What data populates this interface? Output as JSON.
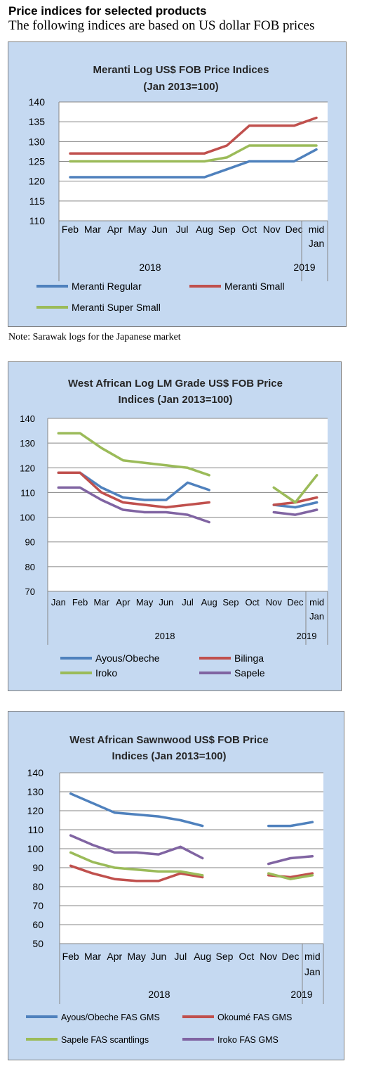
{
  "page": {
    "heading": "Price indices for selected products",
    "subheading": "The following indices are based on US dollar FOB prices",
    "note": "Note: Sarawak logs for the Japanese market"
  },
  "chart_data": [
    {
      "type": "line",
      "title": "Meranti Log US$ FOB Price Indices",
      "subtitle": "(Jan 2013=100)",
      "categories": [
        "Feb",
        "Mar",
        "Apr",
        "May",
        "Jun",
        "Jul",
        "Aug",
        "Sep",
        "Oct",
        "Nov",
        "Dec",
        "mid Jan"
      ],
      "group_labels": [
        "2018",
        "2019"
      ],
      "ylim": [
        110,
        140
      ],
      "yticks": [
        110,
        115,
        120,
        125,
        130,
        135,
        140
      ],
      "grid": true,
      "legend_position": "bottom",
      "series": [
        {
          "name": "Meranti Regular",
          "color": "#4f81bd",
          "values": [
            121,
            121,
            121,
            121,
            121,
            121,
            121,
            123,
            125,
            125,
            125,
            128
          ]
        },
        {
          "name": "Meranti Small",
          "color": "#c0504d",
          "values": [
            127,
            127,
            127,
            127,
            127,
            127,
            127,
            129,
            134,
            134,
            134,
            136
          ]
        },
        {
          "name": "Meranti Super Small",
          "color": "#9bbb59",
          "values": [
            125,
            125,
            125,
            125,
            125,
            125,
            125,
            126,
            129,
            129,
            129,
            129
          ]
        }
      ]
    },
    {
      "type": "line",
      "title": "West African Log LM Grade US$ FOB Price",
      "subtitle": "Indices (Jan 2013=100)",
      "categories": [
        "Jan",
        "Feb",
        "Mar",
        "Apr",
        "May",
        "Jun",
        "Jul",
        "Aug",
        "Sep",
        "Oct",
        "Nov",
        "Dec",
        "mid Jan"
      ],
      "group_labels": [
        "2018",
        "2019"
      ],
      "ylim": [
        70,
        140
      ],
      "yticks": [
        70,
        80,
        90,
        100,
        110,
        120,
        130,
        140
      ],
      "grid": true,
      "legend_position": "bottom",
      "series": [
        {
          "name": "Ayous/Obeche",
          "color": "#4f81bd",
          "values": [
            118,
            118,
            112,
            108,
            107,
            107,
            114,
            111,
            null,
            null,
            105,
            104,
            106
          ]
        },
        {
          "name": "Bilinga",
          "color": "#c0504d",
          "values": [
            118,
            118,
            110,
            106,
            105,
            104,
            105,
            106,
            null,
            null,
            105,
            106,
            108
          ]
        },
        {
          "name": "Iroko",
          "color": "#9bbb59",
          "values": [
            134,
            134,
            128,
            123,
            122,
            121,
            120,
            117,
            null,
            null,
            112,
            106,
            117
          ]
        },
        {
          "name": "Sapele",
          "color": "#8064a2",
          "values": [
            112,
            112,
            107,
            103,
            102,
            102,
            101,
            98,
            null,
            null,
            102,
            101,
            103
          ]
        }
      ]
    },
    {
      "type": "line",
      "title": "West African Sawnwood US$ FOB Price",
      "subtitle": "Indices (Jan 2013=100)",
      "categories": [
        "Feb",
        "Mar",
        "Apr",
        "May",
        "Jun",
        "Jul",
        "Aug",
        "Sep",
        "Oct",
        "Nov",
        "Dec",
        "mid Jan"
      ],
      "group_labels": [
        "2018",
        "2019"
      ],
      "ylim": [
        50,
        140
      ],
      "yticks": [
        50,
        60,
        70,
        80,
        90,
        100,
        110,
        120,
        130,
        140
      ],
      "grid": true,
      "legend_position": "bottom",
      "series": [
        {
          "name": "Ayous/Obeche  FAS GMS",
          "color": "#4f81bd",
          "values": [
            129,
            124,
            119,
            118,
            117,
            115,
            112,
            null,
            null,
            112,
            112,
            114
          ]
        },
        {
          "name": "Okoumé  FAS GMS",
          "color": "#c0504d",
          "values": [
            91,
            87,
            84,
            83,
            83,
            87,
            85,
            null,
            null,
            86,
            85,
            87
          ]
        },
        {
          "name": "Sapele FAS scantlings",
          "color": "#9bbb59",
          "values": [
            98,
            93,
            90,
            89,
            88,
            88,
            86,
            null,
            null,
            87,
            84,
            86
          ]
        },
        {
          "name": "Iroko FAS GMS",
          "color": "#8064a2",
          "values": [
            107,
            102,
            98,
            98,
            97,
            101,
            95,
            null,
            null,
            92,
            95,
            96
          ]
        }
      ]
    }
  ]
}
